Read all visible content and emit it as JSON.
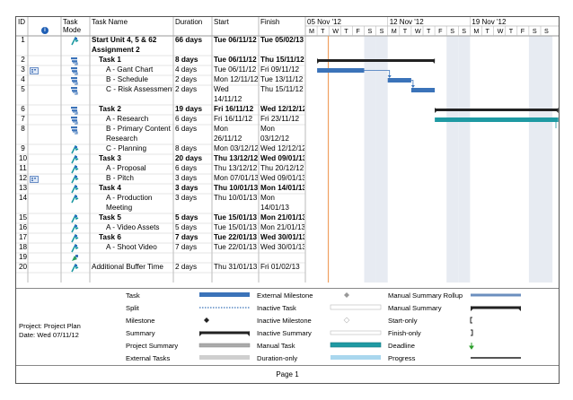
{
  "columns": {
    "id": "ID",
    "info_icon": "info-icon",
    "mode": "Task Mode",
    "name": "Task Name",
    "duration": "Duration",
    "start": "Start",
    "finish": "Finish"
  },
  "timescale": {
    "weeks": [
      "05 Nov '12",
      "12 Nov '12",
      "19 Nov '12"
    ],
    "days": [
      "M",
      "T",
      "W",
      "T",
      "F",
      "S",
      "S",
      "M",
      "T",
      "W",
      "T",
      "F",
      "S",
      "S",
      "M",
      "T",
      "W",
      "T",
      "F",
      "S",
      "S"
    ]
  },
  "rows": [
    {
      "id": "1",
      "icon": "auto-schedule-icon",
      "indicator": "",
      "name": [
        "Start Unit 4, 5 & 62",
        "Assignment 2"
      ],
      "bold": true,
      "indent": 0,
      "duration": "66 days",
      "start": [
        "Tue 06/11/12"
      ],
      "finish": [
        "Tue 05/02/13"
      ]
    },
    {
      "id": "2",
      "icon": "manual-schedule-icon",
      "indicator": "",
      "name": [
        "Task 1"
      ],
      "bold": true,
      "indent": 1,
      "duration": "8 days",
      "start": [
        "Tue 06/11/12"
      ],
      "finish": [
        "Thu 15/11/12"
      ]
    },
    {
      "id": "3",
      "icon": "manual-schedule-icon",
      "indicator": "calendar-icon",
      "name": [
        "A - Gant Chart"
      ],
      "bold": false,
      "indent": 2,
      "duration": "4 days",
      "start": [
        "Tue 06/11/12"
      ],
      "finish": [
        "Fri 09/11/12"
      ]
    },
    {
      "id": "4",
      "icon": "manual-schedule-icon",
      "indicator": "",
      "name": [
        "B - Schedule"
      ],
      "bold": false,
      "indent": 2,
      "duration": "2 days",
      "start": [
        "Mon 12/11/12"
      ],
      "finish": [
        "Tue 13/11/12"
      ]
    },
    {
      "id": "5",
      "icon": "manual-schedule-icon",
      "indicator": "",
      "name": [
        "C - Risk Assessment"
      ],
      "bold": false,
      "indent": 2,
      "duration": "2 days",
      "start": [
        "Wed",
        "14/11/12"
      ],
      "finish": [
        "Thu 15/11/12"
      ]
    },
    {
      "id": "6",
      "icon": "manual-schedule-icon",
      "indicator": "",
      "name": [
        "Task 2"
      ],
      "bold": true,
      "indent": 1,
      "duration": "19 days",
      "start": [
        "Fri 16/11/12"
      ],
      "finish": [
        "Wed 12/12/12"
      ]
    },
    {
      "id": "7",
      "icon": "manual-schedule-icon",
      "indicator": "",
      "name": [
        "A - Research"
      ],
      "bold": false,
      "indent": 2,
      "duration": "6 days",
      "start": [
        "Fri 16/11/12"
      ],
      "finish": [
        "Fri 23/11/12"
      ]
    },
    {
      "id": "8",
      "icon": "manual-schedule-icon",
      "indicator": "",
      "name": [
        "B - Primary Content",
        "Research"
      ],
      "bold": false,
      "indent": 2,
      "duration": "6 days",
      "start": [
        "Mon",
        "26/11/12"
      ],
      "finish": [
        "Mon",
        "03/12/12"
      ]
    },
    {
      "id": "9",
      "icon": "auto-schedule-icon",
      "indicator": "",
      "name": [
        "C - Planning"
      ],
      "bold": false,
      "indent": 2,
      "duration": "8 days",
      "start": [
        "Mon 03/12/12"
      ],
      "finish": [
        "Wed 12/12/12"
      ]
    },
    {
      "id": "10",
      "icon": "auto-schedule-icon",
      "indicator": "",
      "name": [
        "Task 3"
      ],
      "bold": true,
      "indent": 1,
      "duration": "20 days",
      "start": [
        "Thu 13/12/12"
      ],
      "finish": [
        "Wed 09/01/13"
      ]
    },
    {
      "id": "11",
      "icon": "auto-schedule-icon",
      "indicator": "",
      "name": [
        "A - Proposal"
      ],
      "bold": false,
      "indent": 2,
      "duration": "6 days",
      "start": [
        "Thu 13/12/12"
      ],
      "finish": [
        "Thu 20/12/12"
      ]
    },
    {
      "id": "12",
      "icon": "auto-schedule-icon",
      "indicator": "calendar-icon",
      "name": [
        "B - Pitch"
      ],
      "bold": false,
      "indent": 2,
      "duration": "3 days",
      "start": [
        "Mon 07/01/13"
      ],
      "finish": [
        "Wed 09/01/13"
      ]
    },
    {
      "id": "13",
      "icon": "auto-schedule-icon",
      "indicator": "",
      "name": [
        "Task 4"
      ],
      "bold": true,
      "indent": 1,
      "duration": "3 days",
      "start": [
        "Thu 10/01/13"
      ],
      "finish": [
        "Mon 14/01/13"
      ]
    },
    {
      "id": "14",
      "icon": "auto-schedule-icon",
      "indicator": "",
      "name": [
        "A - Production",
        "Meeting"
      ],
      "bold": false,
      "indent": 2,
      "duration": "3 days",
      "start": [
        "Thu 10/01/13"
      ],
      "finish": [
        "Mon",
        "14/01/13"
      ]
    },
    {
      "id": "15",
      "icon": "auto-schedule-icon",
      "indicator": "",
      "name": [
        "Task 5"
      ],
      "bold": true,
      "indent": 1,
      "duration": "5 days",
      "start": [
        "Tue 15/01/13"
      ],
      "finish": [
        "Mon 21/01/13"
      ]
    },
    {
      "id": "16",
      "icon": "auto-schedule-icon",
      "indicator": "",
      "name": [
        "A - Video Assets"
      ],
      "bold": false,
      "indent": 2,
      "duration": "5 days",
      "start": [
        "Tue 15/01/13"
      ],
      "finish": [
        "Mon 21/01/13"
      ]
    },
    {
      "id": "17",
      "icon": "auto-schedule-icon",
      "indicator": "",
      "name": [
        "Task 6"
      ],
      "bold": true,
      "indent": 1,
      "duration": "7 days",
      "start": [
        "Tue 22/01/13"
      ],
      "finish": [
        "Wed 30/01/13"
      ]
    },
    {
      "id": "18",
      "icon": "auto-schedule-icon",
      "indicator": "",
      "name": [
        "A - Shoot Video"
      ],
      "bold": false,
      "indent": 2,
      "duration": "7 days",
      "start": [
        "Tue 22/01/13"
      ],
      "finish": [
        "Wed 30/01/13"
      ]
    },
    {
      "id": "19",
      "icon": "new-task-icon",
      "indicator": "",
      "name": [
        ""
      ],
      "bold": false,
      "indent": 0,
      "duration": "",
      "start": [
        ""
      ],
      "finish": [
        ""
      ]
    },
    {
      "id": "20",
      "icon": "auto-schedule-icon",
      "indicator": "",
      "name": [
        "Additional Buffer Time"
      ],
      "bold": false,
      "indent": 0,
      "duration": "2 days",
      "start": [
        "Thu 31/01/13"
      ],
      "finish": [
        "Fri 01/02/13"
      ]
    }
  ],
  "project": {
    "line1": "Project: Project Plan",
    "line2": "Date: Wed 07/11/12"
  },
  "legend": [
    {
      "label": "Task",
      "symbol": "task-bar"
    },
    {
      "label": "Split",
      "symbol": "split-dots"
    },
    {
      "label": "Milestone",
      "symbol": "milestone-diamond"
    },
    {
      "label": "Summary",
      "symbol": "summary-bar"
    },
    {
      "label": "Project Summary",
      "symbol": "project-summary-bar"
    },
    {
      "label": "External Tasks",
      "symbol": "external-tasks-bar"
    },
    {
      "label": "External Milestone",
      "symbol": "external-milestone-diamond"
    },
    {
      "label": "Inactive Task",
      "symbol": "inactive-task-bar"
    },
    {
      "label": "Inactive Milestone",
      "symbol": "inactive-milestone-diamond"
    },
    {
      "label": "Inactive Summary",
      "symbol": "inactive-summary-bar"
    },
    {
      "label": "Manual Task",
      "symbol": "manual-task-bar"
    },
    {
      "label": "Duration-only",
      "symbol": "duration-only-bar"
    },
    {
      "label": "Manual Summary Rollup",
      "symbol": "manual-summary-rollup-bar"
    },
    {
      "label": "Manual Summary",
      "symbol": "manual-summary-bar"
    },
    {
      "label": "Start-only",
      "symbol": "start-only-bracket"
    },
    {
      "label": "Finish-only",
      "symbol": "finish-only-bracket"
    },
    {
      "label": "Deadline",
      "symbol": "deadline-arrow"
    },
    {
      "label": "Progress",
      "symbol": "progress-line"
    }
  ],
  "colors": {
    "task": "#3b73b9",
    "manual_task": "#1f9aa3",
    "weekend": "#e7ebf2",
    "status_line": "#f0a060",
    "summary": "#222222"
  },
  "footer": {
    "page": "Page 1"
  }
}
